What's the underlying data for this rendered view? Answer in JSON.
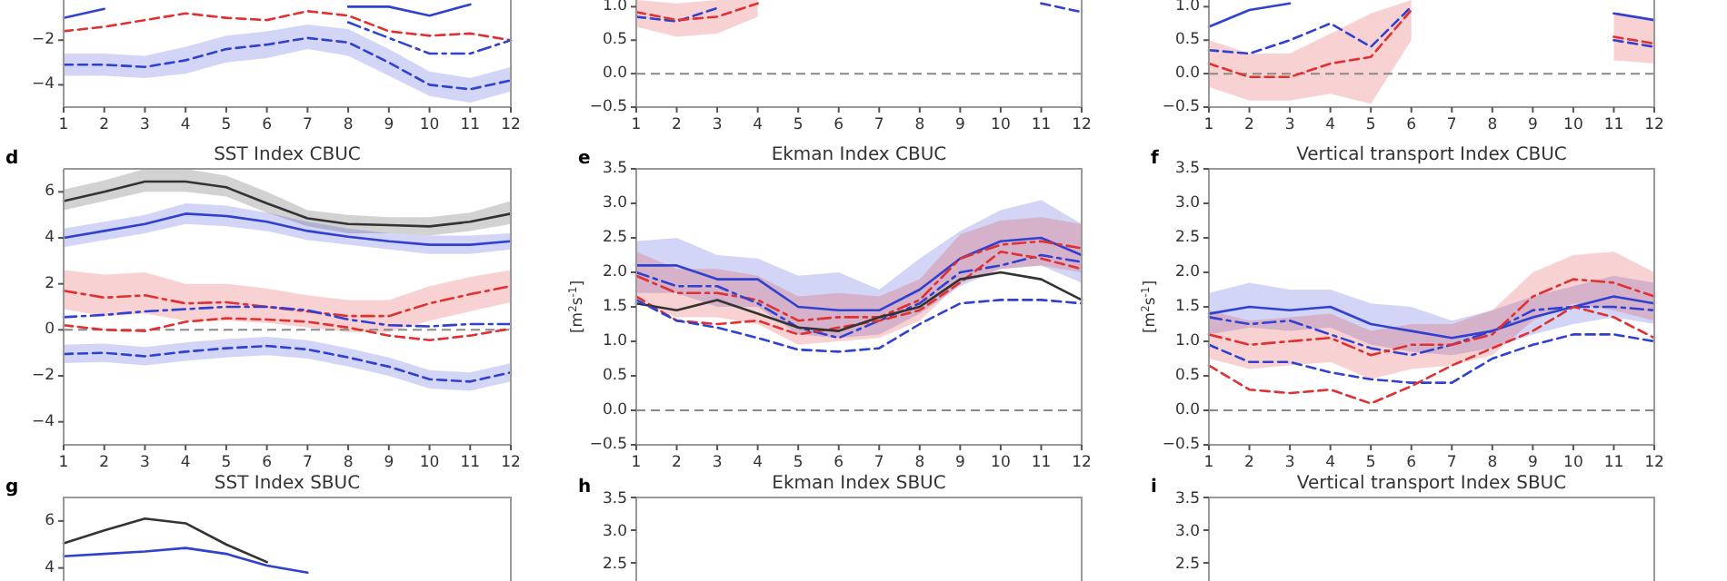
{
  "chart_data": [
    {
      "type": "line",
      "x": [
        1,
        2,
        3,
        4,
        5,
        6,
        7,
        8,
        9,
        10,
        11,
        12
      ],
      "xlim": [
        1,
        12
      ],
      "xticks": [
        1,
        2,
        3,
        4,
        5,
        6,
        7,
        8,
        9,
        10,
        11,
        12
      ],
      "ylim": [
        -5,
        -0.2
      ],
      "yticks": [
        -4,
        -2
      ],
      "series": [
        {
          "color": "#3040d0",
          "line_style": "dashed",
          "values": [
            -3.1,
            -3.1,
            -3.2,
            -2.9,
            -2.4,
            -2.2,
            -1.9,
            -2.1,
            -3.0,
            -4.0,
            -4.2,
            -3.8
          ],
          "lower": [
            -3.6,
            -3.6,
            -3.7,
            -3.5,
            -3.0,
            -2.8,
            -2.4,
            -2.7,
            -3.6,
            -4.5,
            -4.8,
            -4.3
          ],
          "upper": [
            -2.6,
            -2.6,
            -2.7,
            -2.3,
            -1.8,
            -1.6,
            -1.3,
            -1.5,
            -2.4,
            -3.4,
            -3.7,
            -3.2
          ]
        },
        {
          "color": "#e03030",
          "line_style": "dashed",
          "values": [
            -1.6,
            -1.4,
            -1.1,
            -0.8,
            -1.0,
            -1.1,
            -0.7,
            -0.9,
            -1.6,
            -1.8,
            -1.7,
            -2.0
          ]
        },
        {
          "color": "#3040d0",
          "line_style": "dashdot",
          "x": [
            8,
            9,
            10,
            11,
            12
          ],
          "values": [
            -1.2,
            -1.9,
            -2.6,
            -2.6,
            -2.0
          ]
        },
        {
          "color": "#3040d0",
          "line_style": "solid",
          "x": [
            1,
            2
          ],
          "values": [
            -1.0,
            -0.6
          ]
        },
        {
          "color": "#3040d0",
          "line_style": "solid",
          "x": [
            8,
            9,
            10,
            11
          ],
          "values": [
            -0.5,
            -0.5,
            -0.9,
            -0.4
          ]
        }
      ]
    },
    {
      "type": "line",
      "xlim": [
        1,
        12
      ],
      "xticks": [
        1,
        2,
        3,
        4,
        5,
        6,
        7,
        8,
        9,
        10,
        11,
        12
      ],
      "ylim": [
        -0.5,
        1.1
      ],
      "yticks": [
        -0.5,
        {
          "value": 0,
          "label": "0.0"
        },
        0.5,
        {
          "value": 1,
          "label": "1.0"
        }
      ],
      "ref_lines": [
        {
          "axis": "y",
          "value": 0,
          "color": "#888888",
          "line_style": "dashed"
        }
      ],
      "series": [
        {
          "color": "#3040d0",
          "line_style": "dashed",
          "x": [
            1,
            2,
            3
          ],
          "values": [
            0.85,
            0.78,
            0.98
          ]
        },
        {
          "color": "#3040d0",
          "line_style": "dashed",
          "x": [
            11,
            12
          ],
          "values": [
            1.05,
            0.92
          ]
        },
        {
          "color": "#e03030",
          "line_style": "dashed",
          "x": [
            1,
            2,
            3,
            4
          ],
          "values": [
            0.92,
            0.8,
            0.85,
            1.05
          ],
          "lower": [
            0.7,
            0.55,
            0.6,
            0.85
          ],
          "upper": [
            1.1,
            1.05,
            1.1,
            1.1
          ]
        }
      ]
    },
    {
      "type": "line",
      "xlim": [
        1,
        12
      ],
      "xticks": [
        1,
        2,
        3,
        4,
        5,
        6,
        7,
        8,
        9,
        10,
        11,
        12
      ],
      "ylim": [
        -0.5,
        1.1
      ],
      "yticks": [
        -0.5,
        {
          "value": 0,
          "label": "0.0"
        },
        0.5,
        {
          "value": 1,
          "label": "1.0"
        }
      ],
      "ref_lines": [
        {
          "axis": "y",
          "value": 0,
          "color": "#888888",
          "line_style": "dashed"
        }
      ],
      "series": [
        {
          "color": "#3040d0",
          "line_style": "solid",
          "x": [
            1,
            2,
            3
          ],
          "values": [
            0.7,
            0.95,
            1.05
          ]
        },
        {
          "color": "#3040d0",
          "line_style": "solid",
          "x": [
            11,
            12
          ],
          "values": [
            0.9,
            0.8
          ]
        },
        {
          "color": "#e03030",
          "line_style": "dashed",
          "x": [
            1,
            2,
            3,
            4,
            5,
            6
          ],
          "values": [
            0.15,
            -0.05,
            -0.05,
            0.15,
            0.25,
            0.95
          ],
          "lower": [
            -0.2,
            -0.4,
            -0.4,
            -0.3,
            -0.45,
            0.5
          ],
          "upper": [
            0.5,
            0.3,
            0.3,
            0.6,
            0.9,
            1.1
          ]
        },
        {
          "color": "#e03030",
          "line_style": "dashed",
          "x": [
            11,
            12
          ],
          "values": [
            0.55,
            0.45
          ],
          "lower": [
            0.2,
            0.15
          ],
          "upper": [
            0.9,
            0.8
          ]
        },
        {
          "color": "#3040d0",
          "line_style": "dashed",
          "x": [
            1,
            2,
            3,
            4,
            5,
            6
          ],
          "values": [
            0.35,
            0.3,
            0.5,
            0.75,
            0.4,
            1.0
          ]
        },
        {
          "color": "#3040d0",
          "line_style": "dashed",
          "x": [
            11,
            12
          ],
          "values": [
            0.5,
            0.4
          ]
        }
      ]
    },
    {
      "type": "line",
      "title": "SST Index CBUC",
      "annotations": [
        "d"
      ],
      "x": [
        1,
        2,
        3,
        4,
        5,
        6,
        7,
        8,
        9,
        10,
        11,
        12
      ],
      "xlim": [
        1,
        12
      ],
      "xticks": [
        1,
        2,
        3,
        4,
        5,
        6,
        7,
        8,
        9,
        10,
        11,
        12
      ],
      "ylim": [
        -5,
        7
      ],
      "yticks": [
        -4,
        -2,
        0,
        2,
        4,
        6
      ],
      "ref_lines": [
        {
          "axis": "y",
          "value": 0,
          "color": "#888888",
          "line_style": "dashed"
        }
      ],
      "series": [
        {
          "color": "#333333",
          "line_style": "solid",
          "values": [
            5.6,
            6.0,
            6.45,
            6.45,
            6.2,
            5.5,
            4.85,
            4.6,
            4.55,
            4.5,
            4.7,
            5.05
          ],
          "lower": [
            5.2,
            5.6,
            6.0,
            6.0,
            5.8,
            5.1,
            4.5,
            4.2,
            4.2,
            4.1,
            4.3,
            4.6
          ],
          "upper": [
            6.1,
            6.5,
            7.0,
            7.0,
            6.7,
            6.0,
            5.2,
            5.0,
            4.9,
            4.9,
            5.1,
            5.6
          ]
        },
        {
          "color": "#3040d0",
          "line_style": "solid",
          "values": [
            4.0,
            4.3,
            4.6,
            5.05,
            4.95,
            4.7,
            4.3,
            4.05,
            3.85,
            3.7,
            3.7,
            3.85
          ],
          "lower": [
            3.6,
            3.9,
            4.2,
            4.6,
            4.5,
            4.3,
            3.9,
            3.7,
            3.5,
            3.3,
            3.3,
            3.5
          ],
          "upper": [
            4.4,
            4.7,
            5.0,
            5.5,
            5.4,
            5.1,
            4.7,
            4.4,
            4.2,
            4.1,
            4.1,
            4.2
          ]
        },
        {
          "color": "#e03030",
          "line_style": "dashdot",
          "values": [
            1.7,
            1.4,
            1.5,
            1.15,
            1.2,
            1.0,
            0.8,
            0.6,
            0.6,
            1.15,
            1.55,
            1.9
          ],
          "lower": [
            0.9,
            0.6,
            0.7,
            0.4,
            0.4,
            0.3,
            0.1,
            -0.1,
            -0.1,
            0.4,
            0.8,
            1.2
          ],
          "upper": [
            2.6,
            2.4,
            2.5,
            2.0,
            2.0,
            1.8,
            1.5,
            1.3,
            1.3,
            1.9,
            2.3,
            2.6
          ]
        },
        {
          "color": "#3040d0",
          "line_style": "dashdot",
          "values": [
            0.55,
            0.65,
            0.8,
            0.9,
            1.0,
            1.0,
            0.85,
            0.45,
            0.2,
            0.15,
            0.25,
            0.25
          ]
        },
        {
          "color": "#e03030",
          "line_style": "dashed",
          "values": [
            0.2,
            0.0,
            -0.05,
            0.35,
            0.5,
            0.45,
            0.35,
            0.1,
            -0.25,
            -0.45,
            -0.25,
            0.05
          ]
        },
        {
          "color": "#3040d0",
          "line_style": "dashed",
          "values": [
            -1.05,
            -1.0,
            -1.15,
            -0.95,
            -0.8,
            -0.7,
            -0.85,
            -1.2,
            -1.6,
            -2.15,
            -2.25,
            -1.85
          ],
          "lower": [
            -1.45,
            -1.4,
            -1.55,
            -1.35,
            -1.2,
            -1.1,
            -1.25,
            -1.6,
            -2.0,
            -2.55,
            -2.65,
            -2.25
          ],
          "upper": [
            -0.65,
            -0.6,
            -0.75,
            -0.55,
            -0.4,
            -0.3,
            -0.45,
            -0.8,
            -1.2,
            -1.75,
            -1.85,
            -1.45
          ]
        }
      ]
    },
    {
      "type": "line",
      "title": "Ekman Index CBUC",
      "ylabel": "[m$^{2}$s$^{-1}$]",
      "annotations": [
        "e"
      ],
      "x": [
        1,
        2,
        3,
        4,
        5,
        6,
        7,
        8,
        9,
        10,
        11,
        12
      ],
      "xlim": [
        1,
        12
      ],
      "xticks": [
        1,
        2,
        3,
        4,
        5,
        6,
        7,
        8,
        9,
        10,
        11,
        12
      ],
      "ylim": [
        -0.5,
        3.5
      ],
      "yticks": [
        -0.5,
        {
          "value": 0,
          "label": "0.0"
        },
        0.5,
        {
          "value": 1,
          "label": "1.0"
        },
        1.5,
        {
          "value": 2,
          "label": "2.0"
        },
        2.5,
        {
          "value": 3,
          "label": "3.0"
        },
        3.5
      ],
      "ref_lines": [
        {
          "axis": "y",
          "value": 0,
          "color": "#888888",
          "line_style": "dashed"
        }
      ],
      "series": [
        {
          "color": "#3040d0",
          "line_style": "solid",
          "values": [
            2.1,
            2.1,
            1.9,
            1.9,
            1.5,
            1.45,
            1.45,
            1.75,
            2.2,
            2.45,
            2.5,
            2.25
          ],
          "lower": [
            1.7,
            1.7,
            1.5,
            1.5,
            1.1,
            1.05,
            1.1,
            1.4,
            1.8,
            2.05,
            2.1,
            1.85
          ],
          "upper": [
            2.45,
            2.5,
            2.25,
            2.2,
            1.95,
            2.0,
            1.75,
            2.2,
            2.6,
            2.9,
            3.05,
            2.7
          ]
        },
        {
          "color": "#e03030",
          "line_style": "dashdot",
          "values": [
            1.95,
            1.7,
            1.7,
            1.6,
            1.3,
            1.35,
            1.35,
            1.6,
            2.2,
            2.4,
            2.45,
            2.35
          ],
          "lower": [
            1.6,
            1.35,
            1.35,
            1.25,
            0.95,
            1.0,
            1.05,
            1.3,
            1.85,
            2.05,
            2.1,
            2.0
          ],
          "upper": [
            2.3,
            2.05,
            2.05,
            1.95,
            1.65,
            1.7,
            1.65,
            1.9,
            2.55,
            2.75,
            2.8,
            2.7
          ]
        },
        {
          "color": "#3040d0",
          "line_style": "dashdot",
          "values": [
            2.0,
            1.8,
            1.8,
            1.55,
            1.2,
            1.05,
            1.3,
            1.55,
            2.0,
            2.1,
            2.25,
            2.15
          ]
        },
        {
          "color": "#e03030",
          "line_style": "dashed",
          "values": [
            1.65,
            1.3,
            1.25,
            1.3,
            1.1,
            1.2,
            1.3,
            1.45,
            1.85,
            2.3,
            2.2,
            2.05
          ]
        },
        {
          "color": "#333333",
          "line_style": "solid",
          "values": [
            1.55,
            1.45,
            1.6,
            1.4,
            1.2,
            1.15,
            1.35,
            1.5,
            1.9,
            2.0,
            1.9,
            1.6
          ]
        },
        {
          "color": "#3040d0",
          "line_style": "dashed",
          "values": [
            1.6,
            1.3,
            1.2,
            1.05,
            0.88,
            0.85,
            0.9,
            1.25,
            1.55,
            1.6,
            1.6,
            1.55
          ]
        }
      ]
    },
    {
      "type": "line",
      "title": "Vertical transport Index CBUC",
      "ylabel": "[m$^{2}$s$^{-1}$]",
      "annotations": [
        "f"
      ],
      "x": [
        1,
        2,
        3,
        4,
        5,
        6,
        7,
        8,
        9,
        10,
        11,
        12
      ],
      "xlim": [
        1,
        12
      ],
      "xticks": [
        1,
        2,
        3,
        4,
        5,
        6,
        7,
        8,
        9,
        10,
        11,
        12
      ],
      "ylim": [
        -0.5,
        3.5
      ],
      "yticks": [
        -0.5,
        {
          "value": 0,
          "label": "0.0"
        },
        0.5,
        {
          "value": 1,
          "label": "1.0"
        },
        1.5,
        {
          "value": 2,
          "label": "2.0"
        },
        2.5,
        {
          "value": 3,
          "label": "3.0"
        },
        3.5
      ],
      "ref_lines": [
        {
          "axis": "y",
          "value": 0,
          "color": "#888888",
          "line_style": "dashed"
        }
      ],
      "series": [
        {
          "color": "#3040d0",
          "line_style": "solid",
          "values": [
            1.4,
            1.5,
            1.45,
            1.5,
            1.25,
            1.15,
            1.05,
            1.15,
            1.35,
            1.5,
            1.65,
            1.55
          ],
          "lower": [
            1.1,
            1.2,
            1.15,
            1.2,
            0.95,
            0.85,
            0.8,
            0.9,
            1.1,
            1.25,
            1.35,
            1.25
          ],
          "upper": [
            1.7,
            1.85,
            1.75,
            1.75,
            1.55,
            1.5,
            1.3,
            1.45,
            1.65,
            1.8,
            1.95,
            1.85
          ]
        },
        {
          "color": "#3040d0",
          "line_style": "dashdot",
          "values": [
            1.35,
            1.25,
            1.3,
            1.1,
            0.9,
            0.8,
            0.95,
            1.15,
            1.45,
            1.5,
            1.5,
            1.45
          ]
        },
        {
          "color": "#e03030",
          "line_style": "dashdot",
          "values": [
            1.1,
            0.95,
            1.0,
            1.05,
            0.8,
            0.95,
            0.95,
            1.1,
            1.65,
            1.9,
            1.85,
            1.65
          ],
          "lower": [
            0.75,
            0.6,
            0.65,
            0.7,
            0.45,
            0.6,
            0.65,
            0.8,
            1.3,
            1.55,
            1.45,
            1.3
          ],
          "upper": [
            1.45,
            1.3,
            1.35,
            1.4,
            1.15,
            1.25,
            1.25,
            1.45,
            2.0,
            2.25,
            2.3,
            2.0
          ]
        },
        {
          "color": "#3040d0",
          "line_style": "dashed",
          "values": [
            0.95,
            0.7,
            0.7,
            0.55,
            0.45,
            0.4,
            0.4,
            0.75,
            0.95,
            1.1,
            1.1,
            1.0
          ]
        },
        {
          "color": "#e03030",
          "line_style": "dashed",
          "values": [
            0.65,
            0.3,
            0.25,
            0.3,
            0.1,
            0.35,
            0.65,
            0.9,
            1.15,
            1.5,
            1.35,
            1.05
          ]
        }
      ]
    },
    {
      "type": "line",
      "title": "SST Index SBUC",
      "annotations": [
        "g"
      ],
      "tick_labels": "y",
      "categories": [
        null,
        null,
        null,
        null,
        null,
        null,
        null,
        null,
        null,
        null,
        null,
        null
      ],
      "ylim": [
        3.6,
        7
      ],
      "yticks": [
        4,
        6
      ],
      "series": [
        {
          "color": "#333333",
          "line_style": "solid",
          "values": [
            5.05,
            5.6,
            6.1,
            5.9,
            5.0,
            4.25,
            null,
            null,
            null,
            null,
            null,
            null
          ]
        },
        {
          "color": "#3040d0",
          "line_style": "solid",
          "values": [
            4.5,
            4.6,
            4.7,
            4.85,
            4.6,
            4.1,
            3.8,
            null,
            null,
            null,
            null,
            null
          ]
        }
      ]
    },
    {
      "type": "other",
      "title": "Ekman Index SBUC",
      "annotations": [
        "h",
        "3.5",
        "3.0",
        "2.5"
      ]
    },
    {
      "type": "other",
      "title": "Vertical transport Index SBUC",
      "annotations": [
        "i",
        "3.5",
        "3.0",
        "2.5"
      ]
    }
  ]
}
